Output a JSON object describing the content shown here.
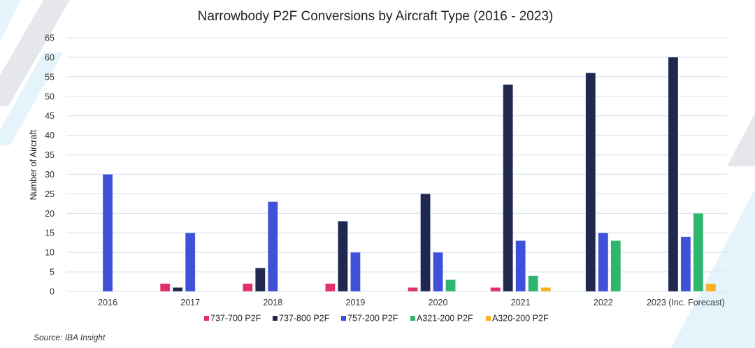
{
  "chart_data": {
    "type": "bar",
    "title": "Narrowbody P2F Conversions by Aircraft Type (2016 - 2023)",
    "xlabel": "",
    "ylabel": "Number of Aircraft",
    "ylim": [
      0,
      65
    ],
    "yticks": [
      0,
      5,
      10,
      15,
      20,
      25,
      30,
      35,
      40,
      45,
      50,
      55,
      60,
      65
    ],
    "grid": true,
    "legend_position": "bottom",
    "categories": [
      "2016",
      "2017",
      "2018",
      "2019",
      "2020",
      "2021",
      "2022",
      "2023 (Inc. Forecast)"
    ],
    "series": [
      {
        "name": "737-700 P2F",
        "color": "#e0316a",
        "values": [
          0,
          2,
          2,
          2,
          1,
          1,
          0,
          0
        ]
      },
      {
        "name": "737-800 P2F",
        "color": "#212850",
        "values": [
          0,
          1,
          6,
          18,
          25,
          53,
          56,
          60
        ]
      },
      {
        "name": "757-200 P2F",
        "color": "#3f51d9",
        "values": [
          30,
          15,
          23,
          10,
          10,
          13,
          15,
          14
        ]
      },
      {
        "name": "A321-200 P2F",
        "color": "#2fb56e",
        "values": [
          0,
          0,
          0,
          0,
          3,
          4,
          13,
          20
        ]
      },
      {
        "name": "A320-200 P2F",
        "color": "#fbb022",
        "values": [
          0,
          0,
          0,
          0,
          0,
          1,
          0,
          2
        ]
      }
    ]
  },
  "source": "Source: IBA Insight"
}
